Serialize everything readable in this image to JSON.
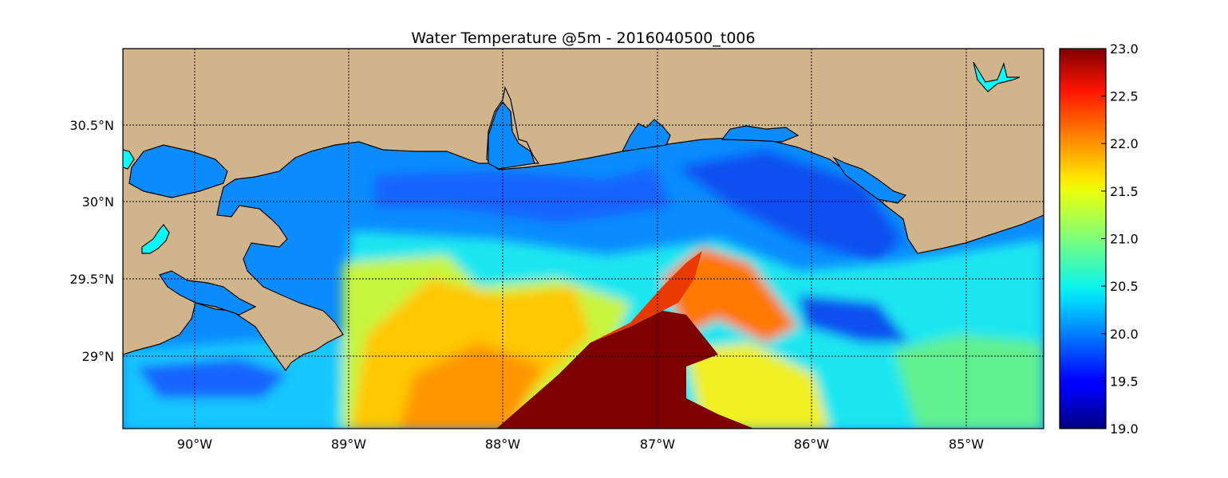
{
  "title": "Water Temperature @5m - 2016040500_t006",
  "map": {
    "lon_range": [
      -90.5,
      -84.5
    ],
    "lat_range": [
      28.55,
      31.0
    ],
    "lon_ticks": [
      -90,
      -89,
      -88,
      -87,
      -86,
      -85
    ],
    "lon_tick_labels": [
      "90°W",
      "89°W",
      "88°W",
      "87°W",
      "86°W",
      "85°W"
    ],
    "lat_ticks": [
      29.0,
      29.5,
      30.0,
      30.5
    ],
    "lat_tick_labels": [
      "29°N",
      "29.5°N",
      "30°N",
      "30.5°N"
    ],
    "gridlines": true,
    "gridline_style": "dotted",
    "land_color": "#d0b48c",
    "coastline_color": "#000000",
    "lake_color": "#00ffff"
  },
  "colorbar": {
    "min": 19.0,
    "max": 23.0,
    "ticks": [
      19.0,
      19.5,
      20.0,
      20.5,
      21.0,
      21.5,
      22.0,
      22.5,
      23.0
    ],
    "tick_labels": [
      "19.0",
      "19.5",
      "20.0",
      "20.5",
      "21.0",
      "21.5",
      "22.0",
      "22.5",
      "23.0"
    ],
    "colormap": "jet",
    "placement": "right"
  }
}
